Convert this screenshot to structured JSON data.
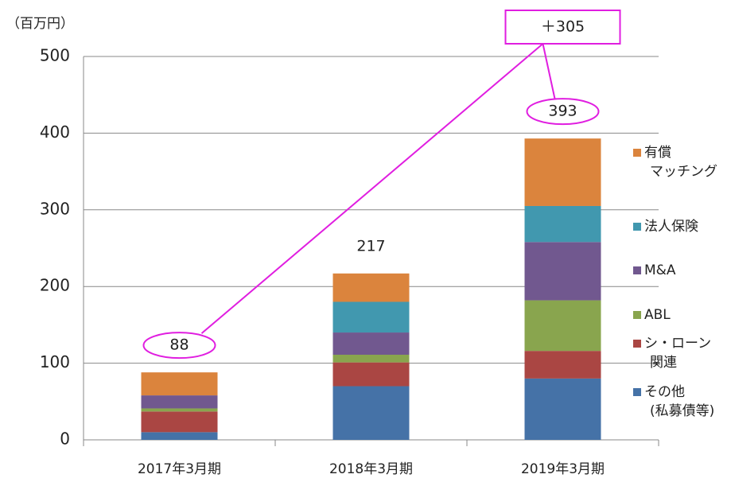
{
  "chart_data": {
    "type": "stacked_bar",
    "unit_label": "（百万円）",
    "categories": [
      "2017年3月期",
      "2018年3月期",
      "2019年3月期"
    ],
    "series": [
      {
        "name": "その他\n(私募債等)",
        "color": "#4572a7",
        "values": [
          10,
          70,
          80
        ]
      },
      {
        "name": "シ・ローン\n関連",
        "color": "#aa4643",
        "values": [
          27,
          31,
          36
        ]
      },
      {
        "name": "ABL",
        "color": "#89a54e",
        "values": [
          4,
          10,
          66
        ]
      },
      {
        "name": "M&A",
        "color": "#71588f",
        "values": [
          17,
          29,
          76
        ]
      },
      {
        "name": "法人保険",
        "color": "#4198af",
        "values": [
          0,
          40,
          47
        ]
      },
      {
        "name": "有償\nマッチング",
        "color": "#db843d",
        "values": [
          30,
          37,
          88
        ]
      }
    ],
    "totals": [
      88,
      217,
      393
    ],
    "annotation": "＋305",
    "ylim": [
      0,
      500
    ],
    "yticks": [
      0,
      100,
      200,
      300,
      400,
      500
    ],
    "grid": true
  }
}
